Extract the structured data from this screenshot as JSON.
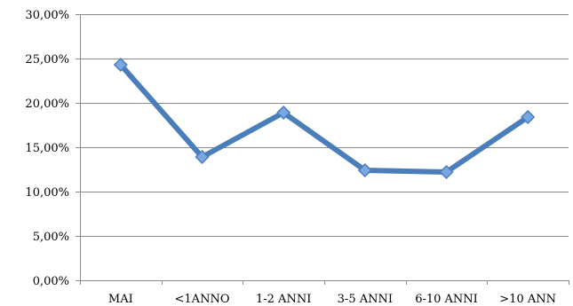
{
  "chart_data": {
    "type": "line",
    "title": "",
    "xlabel": "",
    "ylabel": "",
    "categories": [
      "MAI",
      "<1ANNO",
      "1-2 ANNI",
      "3-5 ANNI",
      "6-10 ANNI",
      ">10 ANN"
    ],
    "series": [
      {
        "values": [
          24.3,
          13.9,
          18.9,
          12.4,
          12.2,
          18.4
        ],
        "color": "#4a7ebb"
      }
    ],
    "ylim": [
      0,
      30
    ],
    "yticks": [
      0,
      5,
      10,
      15,
      20,
      25,
      30
    ],
    "ytick_labels": [
      "0,00%",
      "5,00%",
      "10,00%",
      "15,00%",
      "20,00%",
      "25,00%",
      "30,00%"
    ],
    "grid": true,
    "legend": "none",
    "marker": "diamond"
  }
}
